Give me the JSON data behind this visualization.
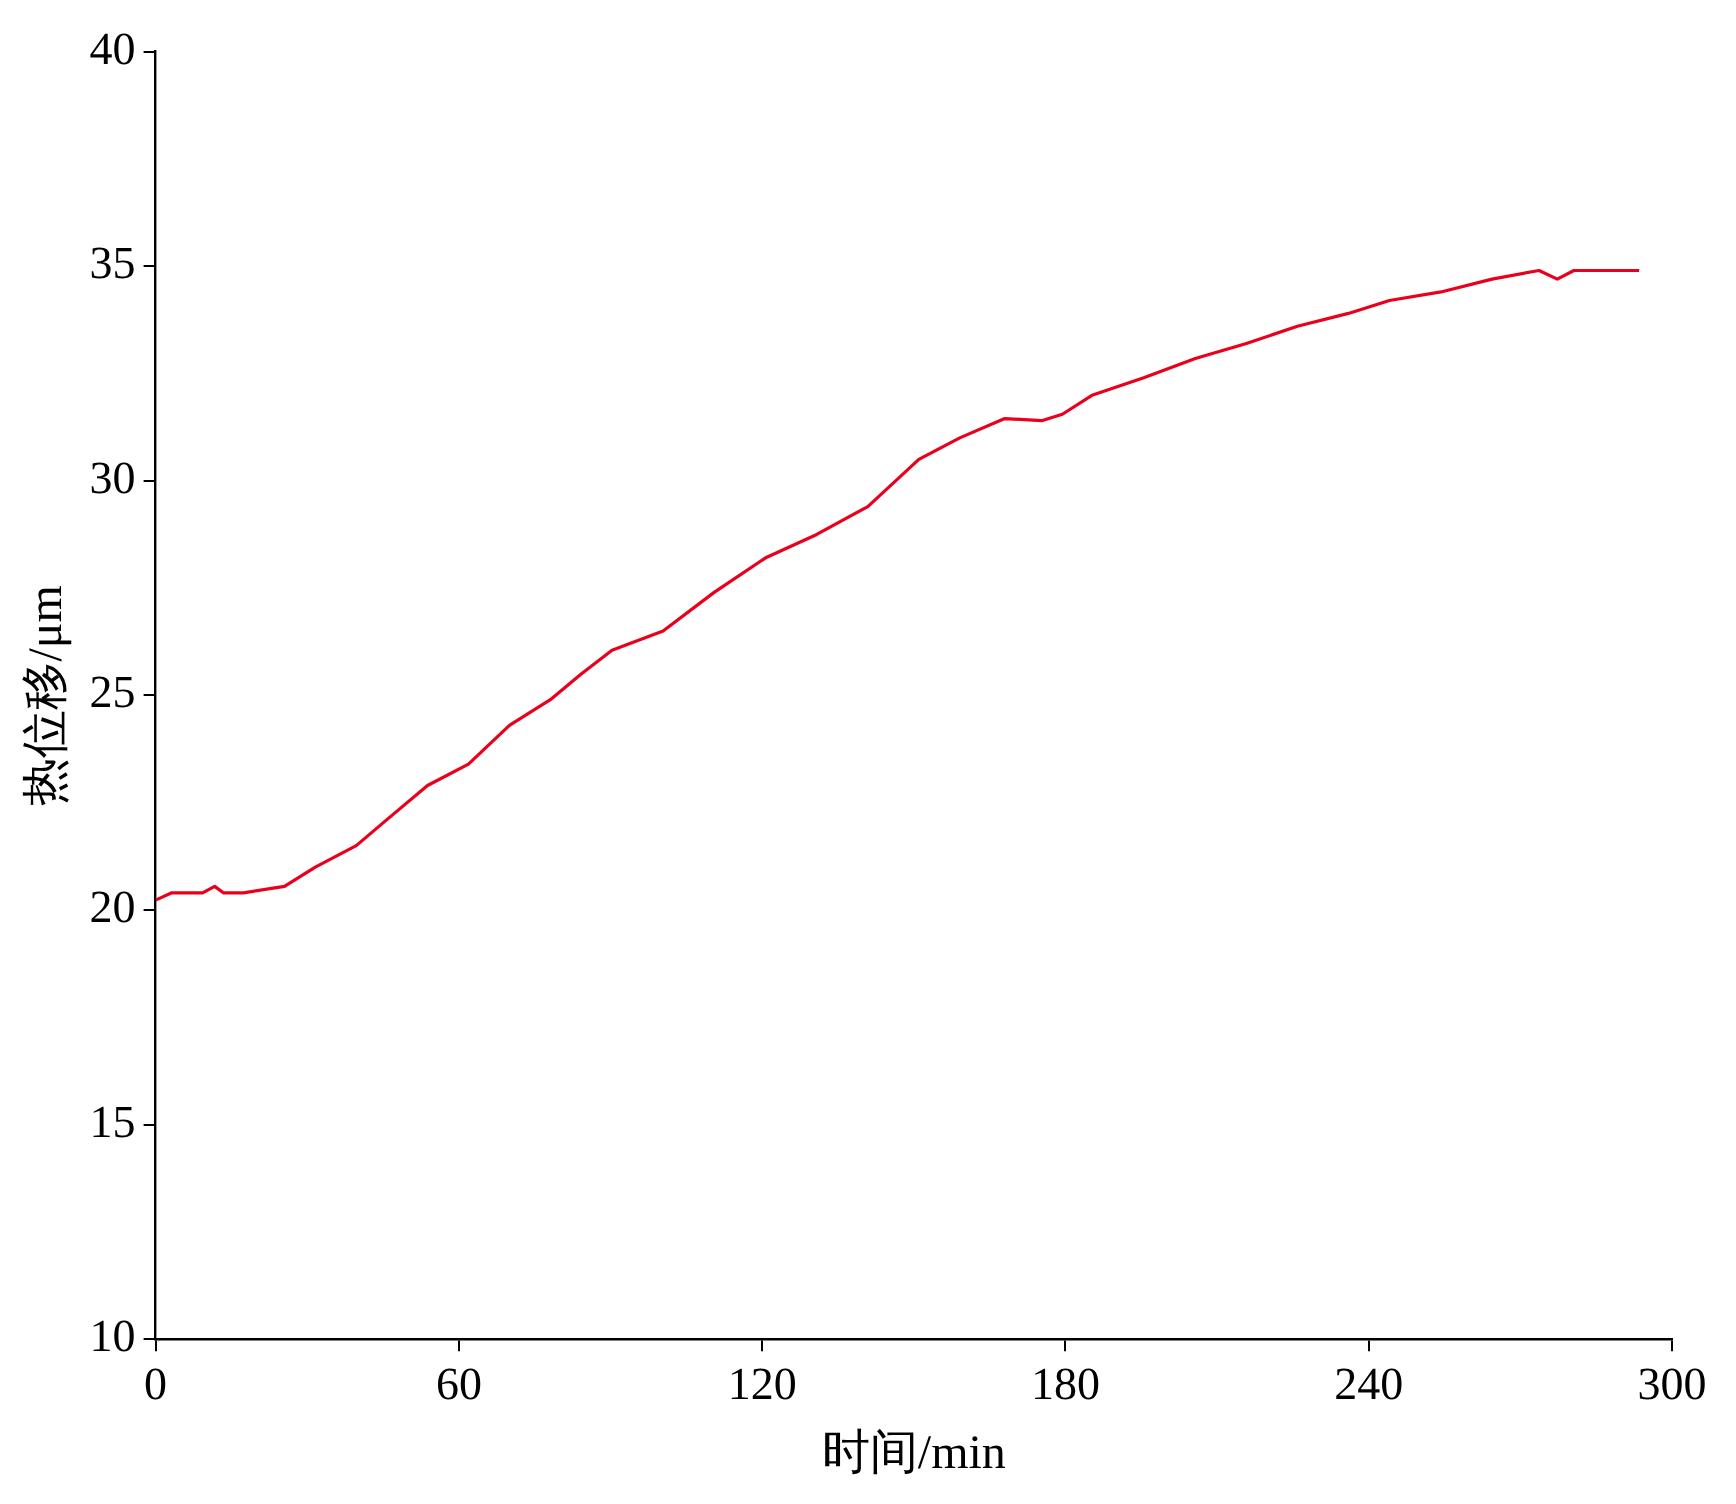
{
  "chart_data": {
    "type": "line",
    "xlabel": "时间/min",
    "ylabel": "热位移/μm",
    "xlim": [
      0,
      300
    ],
    "xticks": [
      0,
      60,
      120,
      180,
      240,
      300
    ],
    "ylim": [
      10,
      40
    ],
    "yticks": [
      10,
      15,
      20,
      25,
      30,
      35,
      40
    ],
    "grid": false,
    "legend": false,
    "marker": "none",
    "line_style": "solid",
    "series": [
      {
        "color": "#e8001c",
        "x": [
          0,
          3.2,
          9.3,
          11.7,
          13.4,
          17.4,
          25.5,
          31.6,
          39.7,
          45.7,
          53.8,
          61.9,
          70,
          78.1,
          84.2,
          90.3,
          100.4,
          110.5,
          120.6,
          130.8,
          140.9,
          151,
          159.1,
          168,
          175.3,
          179.4,
          185.4,
          195.5,
          205.7,
          215.8,
          225.9,
          236,
          244.1,
          254.3,
          264.4,
          273.7,
          277.3,
          280.6,
          288.7,
          293.5
        ],
        "values": [
          20.23,
          20.4,
          20.4,
          20.55,
          20.4,
          20.4,
          20.55,
          21.0,
          21.5,
          22.1,
          22.9,
          23.4,
          24.3,
          24.9,
          25.5,
          26.05,
          26.5,
          27.4,
          28.2,
          28.75,
          29.4,
          30.5,
          31.0,
          31.45,
          31.4,
          31.55,
          32.0,
          32.4,
          32.85,
          33.2,
          33.6,
          33.9,
          34.2,
          34.4,
          34.7,
          34.9,
          34.7,
          34.9,
          34.9,
          34.9
        ]
      }
    ]
  }
}
